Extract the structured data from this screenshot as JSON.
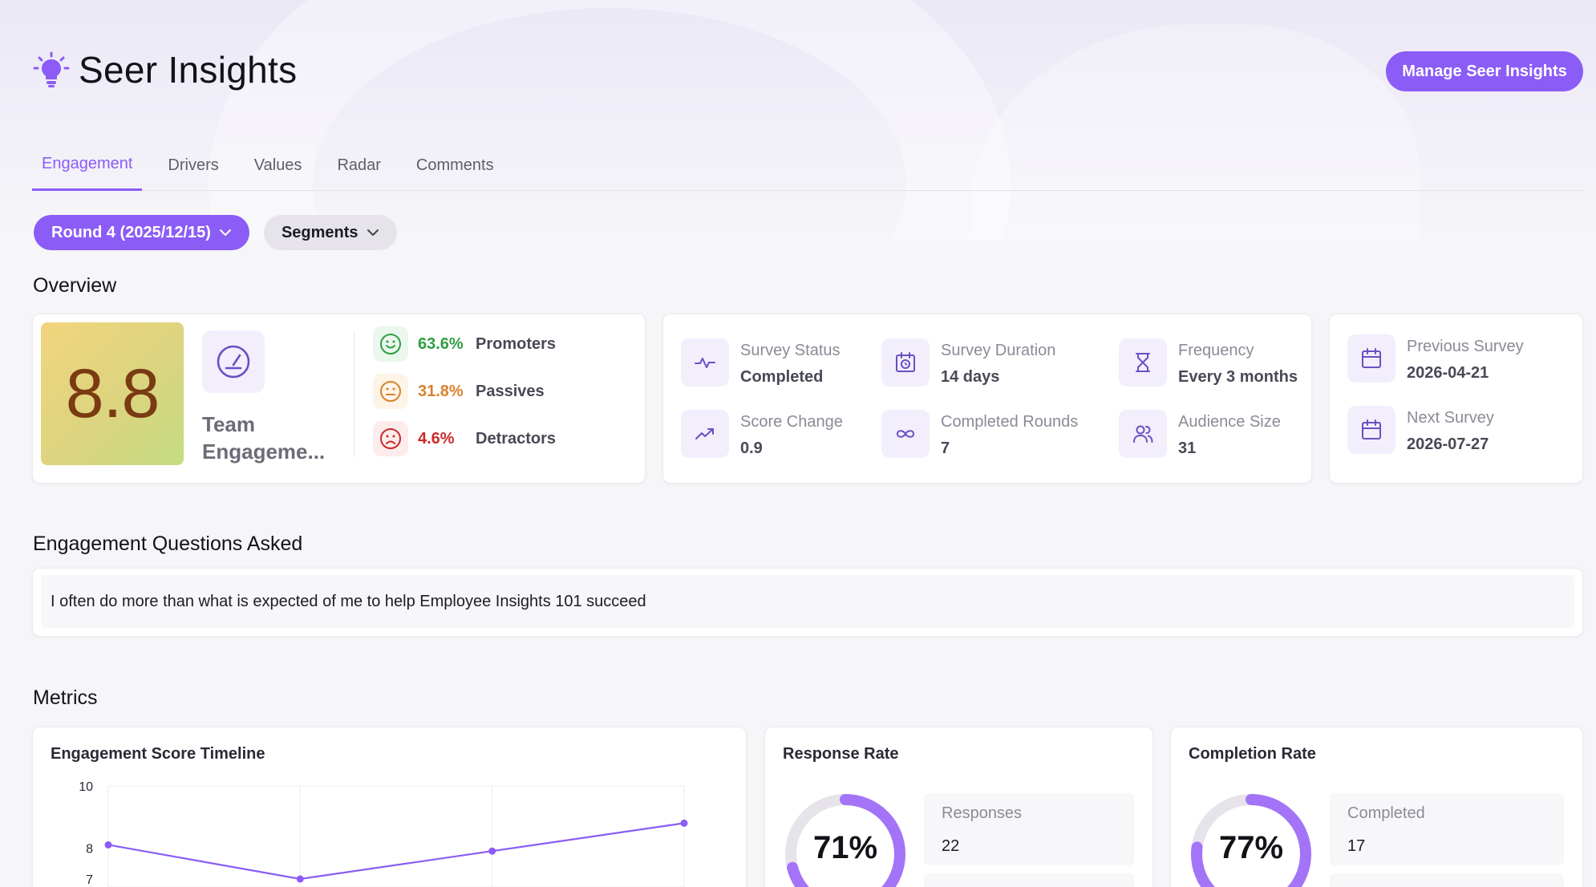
{
  "app": {
    "title": "Seer Insights",
    "icon": "lightbulb-icon"
  },
  "header": {
    "manage_label": "Manage Seer Insights"
  },
  "tabs": [
    {
      "label": "Engagement",
      "active": true
    },
    {
      "label": "Drivers",
      "active": false
    },
    {
      "label": "Values",
      "active": false
    },
    {
      "label": "Radar",
      "active": false
    },
    {
      "label": "Comments",
      "active": false
    }
  ],
  "filters": {
    "round_label": "Round 4 (2025/12/15)",
    "segments_label": "Segments"
  },
  "overview": {
    "title": "Overview",
    "score": "8.8",
    "score_label": "Team Engageme...",
    "distribution": [
      {
        "pct": "63.6%",
        "label": "Promoters",
        "color": "#2f9e44"
      },
      {
        "pct": "31.8%",
        "label": "Passives",
        "color": "#d9822b"
      },
      {
        "pct": "4.6%",
        "label": "Detractors",
        "color": "#c92a2a"
      }
    ],
    "stats": [
      {
        "icon": "activity-icon",
        "label": "Survey Status",
        "value": "Completed"
      },
      {
        "icon": "calendar-clock-icon",
        "label": "Survey Duration",
        "value": "14 days"
      },
      {
        "icon": "hourglass-icon",
        "label": "Frequency",
        "value": "Every 3 months"
      },
      {
        "icon": "trending-up-icon",
        "label": "Score Change",
        "value": "0.9"
      },
      {
        "icon": "infinity-icon",
        "label": "Completed Rounds",
        "value": "7"
      },
      {
        "icon": "users-icon",
        "label": "Audience Size",
        "value": "31"
      }
    ],
    "schedule": [
      {
        "icon": "calendar-icon",
        "label": "Previous Survey",
        "value": "2026-04-21"
      },
      {
        "icon": "calendar-icon",
        "label": "Next Survey",
        "value": "2026-07-27"
      }
    ]
  },
  "questions": {
    "title": "Engagement Questions Asked",
    "items": [
      "I often do more than what is expected of me to help Employee Insights 101 succeed"
    ]
  },
  "metrics": {
    "title": "Metrics",
    "timeline_title": "Engagement Score Timeline",
    "response": {
      "title": "Response Rate",
      "percent": "71%",
      "fraction": 0.71,
      "label": "Responses",
      "value": "22"
    },
    "completion": {
      "title": "Completion Rate",
      "percent": "77%",
      "fraction": 0.77,
      "label": "Completed",
      "value": "17"
    }
  },
  "colors": {
    "accent": "#8b5cf6",
    "accent_light": "#f2eefc",
    "track": "#e6e4ea"
  },
  "chart_data": {
    "type": "line",
    "title": "Engagement Score Timeline",
    "x": [
      1,
      2,
      3,
      4
    ],
    "ytick_labels": [
      "10",
      "8",
      "7"
    ],
    "ylim": [
      7,
      10
    ],
    "grid": true,
    "series": [
      {
        "values": [
          8.1,
          7.0,
          7.9,
          8.8
        ]
      }
    ]
  }
}
